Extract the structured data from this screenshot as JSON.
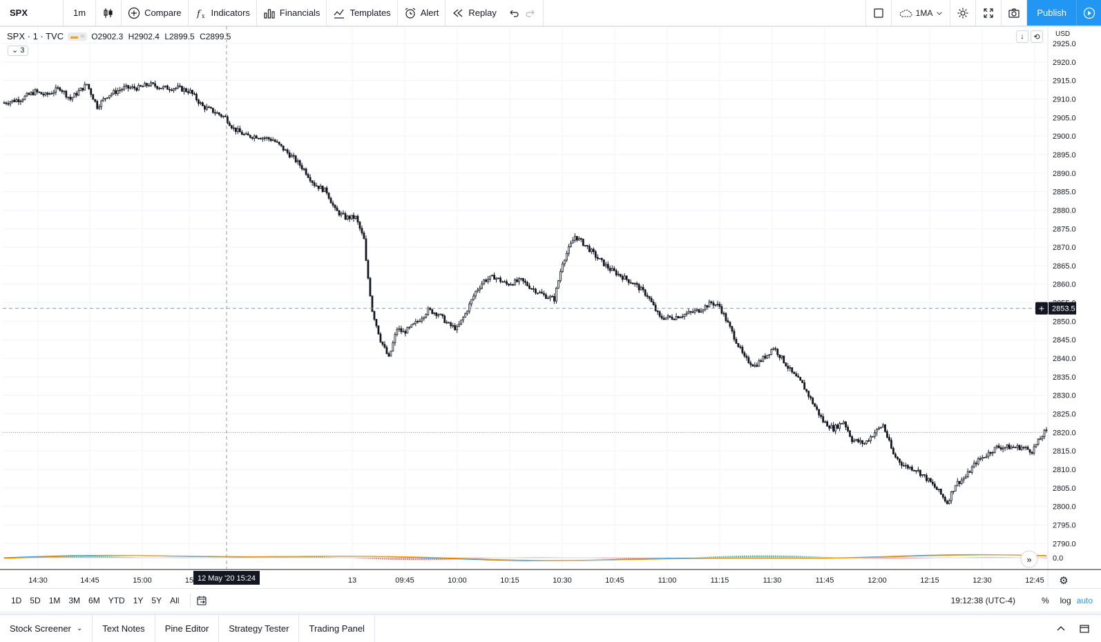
{
  "toolbar": {
    "symbol": "SPX",
    "interval": "1m",
    "compare": "Compare",
    "indicators": "Indicators",
    "financials": "Financials",
    "templates": "Templates",
    "alert": "Alert",
    "replay": "Replay",
    "layout_name": "1MA",
    "publish": "Publish"
  },
  "legend": {
    "symbol": "SPX · 1 · TVC",
    "open": "O2902.3",
    "high": "H2902.4",
    "low": "L2899.5",
    "close": "C2899.5",
    "collapsed_count": "3"
  },
  "price_scale": {
    "currency": "USD",
    "ticks": [
      "2925.0",
      "2920.0",
      "2915.0",
      "2910.0",
      "2905.0",
      "2900.0",
      "2895.0",
      "2890.0",
      "2885.0",
      "2880.0",
      "2875.0",
      "2870.0",
      "2865.0",
      "2860.0",
      "2855.0",
      "2850.0",
      "2845.0",
      "2840.0",
      "2835.0",
      "2830.0",
      "2825.0",
      "2820.0",
      "2815.0",
      "2810.0",
      "2805.0",
      "2800.0",
      "2795.0",
      "2790.0"
    ],
    "crosshair_label": "2853.5",
    "indicator_zero": "0.0"
  },
  "time_scale": {
    "ticks": [
      "14:30",
      "14:45",
      "15:00",
      "15",
      "13",
      "09:45",
      "10:00",
      "10:15",
      "10:30",
      "10:45",
      "11:00",
      "11:15",
      "11:30",
      "11:45",
      "12:00",
      "12:15",
      "12:30",
      "12:45"
    ],
    "crosshair_label": "12 May '20   15:24"
  },
  "ranges": [
    "1D",
    "5D",
    "1M",
    "3M",
    "6M",
    "YTD",
    "1Y",
    "5Y",
    "All"
  ],
  "status": {
    "clock": "19:12:38 (UTC-4)",
    "percent": "%",
    "log": "log",
    "auto": "auto"
  },
  "tabs": [
    "Stock Screener",
    "Text Notes",
    "Pine Editor",
    "Strategy Tester",
    "Trading Panel"
  ],
  "colors": {
    "accent": "#2196f3",
    "candle": "#131722",
    "macd_pos": "#26a69a",
    "macd_neg": "#ef5350",
    "macd_line": "#2196f3",
    "signal_line": "#ff9800"
  },
  "chart_data": {
    "type": "candlestick",
    "ylim": [
      2787.5,
      2927
    ],
    "price_path": [
      [
        0,
        2909
      ],
      [
        8,
        2910
      ],
      [
        15,
        2912
      ],
      [
        20,
        2911
      ],
      [
        27,
        2913
      ],
      [
        32,
        2910
      ],
      [
        40,
        2914
      ],
      [
        45,
        2908
      ],
      [
        50,
        2911
      ],
      [
        58,
        2913
      ],
      [
        65,
        2913
      ],
      [
        70,
        2914
      ],
      [
        77,
        2913
      ],
      [
        84,
        2913
      ],
      [
        90,
        2912
      ],
      [
        96,
        2908
      ],
      [
        100,
        2907
      ],
      [
        107,
        2905
      ],
      [
        111,
        2902
      ],
      [
        117,
        2900
      ],
      [
        122,
        2900
      ],
      [
        130,
        2899
      ],
      [
        134,
        2897
      ],
      [
        140,
        2894
      ],
      [
        145,
        2891
      ],
      [
        150,
        2887
      ],
      [
        156,
        2885
      ],
      [
        160,
        2880
      ],
      [
        165,
        2878
      ],
      [
        170,
        2878
      ],
      [
        174,
        2872
      ],
      [
        175,
        2866
      ],
      [
        178,
        2853
      ],
      [
        182,
        2845
      ],
      [
        186,
        2840
      ],
      [
        190,
        2848
      ],
      [
        193,
        2847
      ],
      [
        196,
        2848
      ],
      [
        200,
        2850
      ],
      [
        205,
        2853
      ],
      [
        210,
        2852
      ],
      [
        215,
        2849
      ],
      [
        219,
        2848
      ],
      [
        223,
        2852
      ],
      [
        228,
        2858
      ],
      [
        232,
        2861
      ],
      [
        237,
        2862
      ],
      [
        243,
        2860
      ],
      [
        250,
        2861
      ],
      [
        255,
        2859
      ],
      [
        261,
        2857
      ],
      [
        266,
        2856
      ],
      [
        270,
        2866
      ],
      [
        276,
        2873
      ],
      [
        282,
        2870
      ],
      [
        287,
        2867
      ],
      [
        293,
        2864
      ],
      [
        299,
        2862
      ],
      [
        305,
        2860
      ],
      [
        311,
        2857
      ],
      [
        317,
        2851
      ],
      [
        323,
        2851
      ],
      [
        330,
        2852
      ],
      [
        336,
        2853
      ],
      [
        342,
        2855
      ],
      [
        346,
        2854
      ],
      [
        352,
        2847
      ],
      [
        358,
        2840
      ],
      [
        363,
        2838
      ],
      [
        369,
        2841
      ],
      [
        372,
        2843
      ],
      [
        376,
        2840
      ],
      [
        381,
        2836
      ],
      [
        386,
        2833
      ],
      [
        391,
        2828
      ],
      [
        396,
        2823
      ],
      [
        401,
        2821
      ],
      [
        406,
        2823
      ],
      [
        410,
        2818
      ],
      [
        416,
        2817
      ],
      [
        421,
        2820
      ],
      [
        425,
        2822
      ],
      [
        430,
        2814
      ],
      [
        435,
        2811
      ],
      [
        441,
        2810
      ],
      [
        447,
        2807
      ],
      [
        452,
        2804
      ],
      [
        456,
        2801
      ],
      [
        460,
        2806
      ],
      [
        465,
        2808
      ],
      [
        470,
        2812
      ],
      [
        475,
        2814
      ],
      [
        480,
        2816
      ],
      [
        486,
        2816
      ],
      [
        492,
        2816
      ],
      [
        497,
        2815
      ],
      [
        503,
        2820
      ]
    ]
  }
}
